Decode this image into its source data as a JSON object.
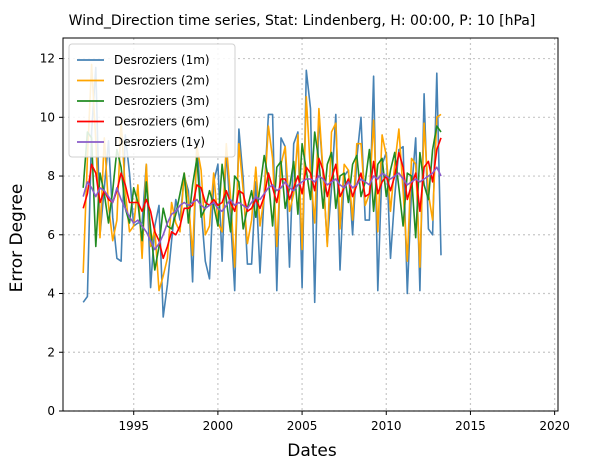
{
  "chart_data": {
    "type": "line",
    "title": "Wind_Direction time series, Stat: Lindenberg, H: 00:00, P: 10 [hPa]",
    "xlabel": "Dates",
    "ylabel": "Error Degree",
    "xlim": [
      1990.8,
      2020.2
    ],
    "ylim": [
      0,
      12.7
    ],
    "xticks": [
      1995,
      2000,
      2005,
      2010,
      2015,
      2020
    ],
    "yticks": [
      0,
      2,
      4,
      6,
      8,
      10,
      12
    ],
    "grid": true,
    "legend_position": "top-left",
    "x_start": 1992.0,
    "x_step": 0.25,
    "series": [
      {
        "name": "Desroziers (1m)",
        "color": "#4682b4",
        "values": [
          3.7,
          3.9,
          9.5,
          11.7,
          6.0,
          7.6,
          9.2,
          6.6,
          5.2,
          5.1,
          9.4,
          8.1,
          6.3,
          6.4,
          6.4,
          8.4,
          4.2,
          6.3,
          7.0,
          3.2,
          4.3,
          5.8,
          7.2,
          6.5,
          8.0,
          7.5,
          4.4,
          9.2,
          6.9,
          5.1,
          4.5,
          7.8,
          8.4,
          5.1,
          8.9,
          6.6,
          4.1,
          9.6,
          7.9,
          5.0,
          5.0,
          7.8,
          4.7,
          7.4,
          10.1,
          10.1,
          4.1,
          9.3,
          9.0,
          4.9,
          9.1,
          9.5,
          4.2,
          11.6,
          10.3,
          3.7,
          10.1,
          8.0,
          5.7,
          7.6,
          10.1,
          4.8,
          8.0,
          8.2,
          6.0,
          8.6,
          10.0,
          6.5,
          6.5,
          11.4,
          4.1,
          8.4,
          8.8,
          5.2,
          7.3,
          8.9,
          9.0,
          4.0,
          7.5,
          9.3,
          4.1,
          10.8,
          6.2,
          6.0,
          11.5,
          5.3
        ]
      },
      {
        "name": "Desroziers (2m)",
        "color": "#ffa500",
        "values": [
          4.7,
          8.6,
          11.8,
          9.2,
          5.9,
          9.3,
          7.0,
          5.8,
          6.5,
          9.9,
          7.5,
          6.1,
          6.3,
          7.7,
          5.2,
          8.4,
          5.6,
          6.2,
          4.1,
          4.6,
          5.2,
          7.1,
          6.4,
          6.1,
          8.1,
          7.2,
          5.3,
          9.0,
          8.2,
          6.0,
          6.3,
          8.1,
          6.4,
          6.1,
          9.1,
          7.3,
          4.9,
          9.1,
          7.5,
          5.7,
          6.5,
          8.3,
          6.3,
          7.3,
          9.7,
          8.6,
          5.6,
          8.4,
          9.0,
          6.8,
          7.4,
          9.4,
          5.5,
          10.7,
          8.1,
          6.4,
          10.3,
          8.1,
          5.6,
          9.5,
          9.8,
          6.2,
          8.4,
          8.2,
          6.5,
          9.1,
          9.1,
          7.0,
          7.4,
          9.9,
          6.1,
          9.4,
          8.7,
          6.8,
          8.4,
          9.6,
          7.5,
          5.1,
          8.6,
          8.4,
          4.9,
          9.8,
          7.4,
          6.5,
          10.0,
          10.1
        ]
      },
      {
        "name": "Desroziers (3m)",
        "color": "#228b22",
        "values": [
          7.6,
          9.5,
          9.3,
          5.6,
          8.1,
          7.4,
          6.4,
          7.5,
          8.9,
          8.3,
          6.9,
          6.4,
          7.6,
          7.1,
          5.8,
          7.8,
          6.2,
          4.8,
          5.6,
          6.9,
          6.3,
          6.2,
          6.7,
          7.4,
          8.1,
          6.4,
          7.7,
          8.6,
          6.6,
          6.9,
          7.5,
          7.0,
          6.3,
          8.4,
          7.2,
          6.1,
          8.0,
          7.8,
          6.2,
          6.9,
          7.5,
          6.6,
          7.6,
          8.7,
          7.9,
          6.3,
          8.3,
          8.5,
          6.9,
          7.6,
          8.5,
          6.7,
          9.1,
          8.2,
          7.2,
          9.5,
          8.5,
          6.9,
          8.4,
          8.8,
          6.9,
          8.0,
          8.1,
          7.1,
          8.4,
          8.7,
          7.3,
          7.8,
          8.9,
          6.8,
          8.4,
          8.6,
          7.3,
          8.2,
          8.8,
          7.6,
          6.3,
          8.1,
          8.0,
          5.9,
          8.8,
          7.7,
          7.2,
          8.9,
          9.7,
          9.5
        ]
      },
      {
        "name": "Desroziers (6m)",
        "color": "#ff0000",
        "values": [
          6.9,
          7.4,
          8.4,
          8.1,
          7.1,
          7.5,
          7.2,
          7.1,
          7.5,
          8.1,
          7.7,
          7.1,
          7.1,
          7.1,
          6.8,
          7.2,
          6.8,
          6.1,
          5.8,
          5.2,
          5.6,
          6.1,
          6.0,
          6.3,
          6.9,
          6.9,
          7.0,
          7.7,
          7.6,
          7.1,
          7.0,
          7.2,
          7.0,
          7.1,
          7.5,
          7.1,
          6.8,
          7.5,
          7.4,
          6.8,
          6.9,
          7.2,
          6.9,
          7.3,
          8.1,
          7.6,
          7.1,
          7.9,
          7.9,
          7.2,
          7.6,
          8.0,
          7.4,
          8.3,
          8.1,
          7.5,
          8.6,
          8.2,
          7.3,
          7.9,
          8.4,
          7.3,
          7.6,
          7.9,
          7.3,
          7.7,
          8.1,
          7.3,
          7.4,
          8.5,
          7.4,
          7.8,
          8.0,
          7.5,
          8.0,
          8.8,
          8.3,
          7.2,
          7.7,
          8.1,
          6.8,
          8.3,
          8.5,
          7.8,
          8.9,
          9.3
        ]
      },
      {
        "name": "Desroziers (1y)",
        "color": "#8a5cc8",
        "values": [
          7.3,
          7.8,
          7.6,
          7.3,
          7.6,
          7.5,
          7.3,
          7.1,
          7.6,
          7.2,
          6.9,
          6.6,
          6.4,
          6.5,
          6.3,
          6.1,
          5.8,
          5.5,
          5.7,
          6.0,
          6.4,
          6.7,
          6.8,
          7.0,
          7.1,
          7.0,
          7.1,
          7.2,
          7.0,
          6.9,
          7.0,
          7.1,
          6.9,
          6.8,
          7.0,
          7.2,
          7.0,
          7.1,
          7.0,
          6.9,
          7.1,
          7.3,
          7.2,
          7.4,
          7.6,
          7.7,
          7.5,
          7.6,
          7.8,
          7.6,
          7.5,
          7.7,
          7.8,
          7.9,
          7.9,
          7.8,
          8.0,
          7.9,
          7.7,
          7.8,
          7.9,
          7.7,
          7.6,
          7.8,
          7.6,
          7.7,
          7.9,
          7.8,
          7.7,
          8.0,
          7.9,
          8.1,
          8.0,
          7.9,
          8.0,
          8.1,
          7.9,
          7.7,
          7.8,
          7.9,
          7.8,
          7.9,
          8.0,
          8.1,
          8.3,
          8.0
        ]
      }
    ]
  }
}
